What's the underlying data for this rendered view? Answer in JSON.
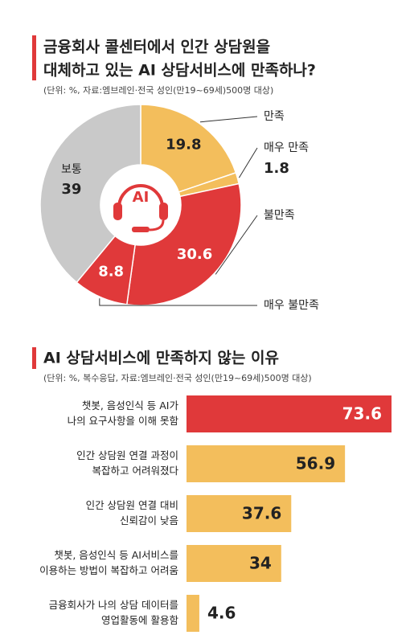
{
  "chart_data": [
    {
      "type": "pie",
      "title": [
        "금융회사 콜센터에서 인간 상담원을",
        "대체하고 있는 AI 상담서비스에 만족하나?"
      ],
      "subtitle": "(단위: %, 자료:엠브레인·전국 성인(만19~69세)500명 대상)",
      "icon_label": "AI",
      "categories": [
        "만족",
        "매우 만족",
        "불만족",
        "매우 불만족",
        "보통"
      ],
      "values": [
        19.8,
        1.8,
        30.6,
        8.8,
        39
      ],
      "colors": [
        "#f3be5c",
        "#f3be5c",
        "#e0393a",
        "#e0393a",
        "#c9c9c9"
      ]
    },
    {
      "type": "bar",
      "orientation": "horizontal",
      "title": "AI 상담서비스에 만족하지 않는 이유",
      "subtitle": "(단위: %, 복수응답, 자료:엠브레인·전국 성인(만19~69세)500명 대상)",
      "categories": [
        [
          "챗봇, 음성인식 등 AI가",
          "나의 요구사항을 이해 못함"
        ],
        [
          "인간 상담원 연결 과정이",
          "복잡하고 어려워졌다"
        ],
        [
          "인간 상담원 연결 대비",
          "신뢰감이 낮음"
        ],
        [
          "챗봇, 음성인식 등 AI서비스를",
          "이용하는 방법이 복잡하고 어려움"
        ],
        [
          "금융회사가 나의 상담 데이터를",
          "영업활동에 활용함"
        ]
      ],
      "values": [
        73.6,
        56.9,
        37.6,
        34,
        4.6
      ],
      "colors": [
        "#e0393a",
        "#f3be5c",
        "#f3be5c",
        "#f3be5c",
        "#f3be5c"
      ]
    }
  ]
}
